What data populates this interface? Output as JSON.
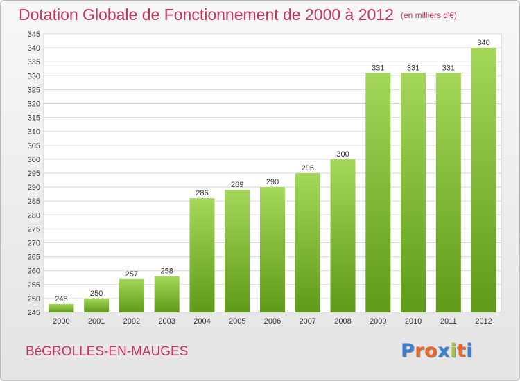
{
  "header": {
    "title": "Dotation Globale de Fonctionnement de 2000 à 2012",
    "unit": "(en milliers d'€)"
  },
  "footer": {
    "commune": "BéGROLLES-EN-MAUGES",
    "logo": "Proxiti"
  },
  "colors": {
    "title": "#c8325a",
    "bar_top": "#a4d75a",
    "bar_bottom": "#5f9a18",
    "logo_letters": [
      "#3a7fd0",
      "#e8672a",
      "#e8672a",
      "#3a7fd0",
      "#a0c83c",
      "#e8672a",
      "#3a7fd0"
    ]
  },
  "chart_data": {
    "type": "bar",
    "categories": [
      "2000",
      "2001",
      "2002",
      "2003",
      "2004",
      "2005",
      "2006",
      "2007",
      "2008",
      "2009",
      "2010",
      "2011",
      "2012"
    ],
    "values": [
      248,
      250,
      257,
      258,
      286,
      289,
      290,
      295,
      300,
      331,
      331,
      331,
      340
    ],
    "ylim": [
      245,
      345
    ],
    "yticks": [
      245,
      250,
      255,
      260,
      265,
      270,
      275,
      280,
      285,
      290,
      295,
      300,
      305,
      310,
      315,
      320,
      325,
      330,
      335,
      340,
      345
    ],
    "grid": true,
    "data_labels": true
  }
}
